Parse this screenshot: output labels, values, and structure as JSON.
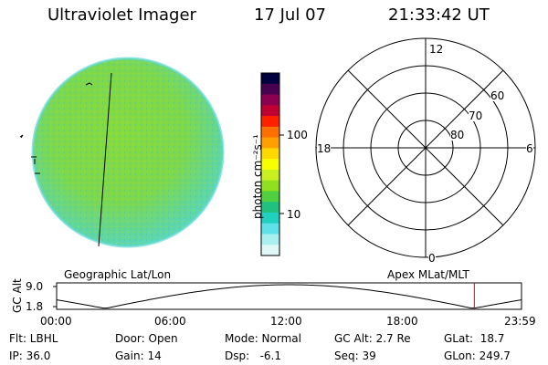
{
  "header": {
    "instrument": "Ultraviolet Imager",
    "date": "17 Jul 07",
    "time": "21:33:42 UT"
  },
  "colorbar": {
    "unit_label": "photon cm⁻²s⁻¹",
    "ticks": [
      "100",
      "10"
    ],
    "colors": [
      "#000040",
      "#4a0050",
      "#8b0050",
      "#c00030",
      "#ff2000",
      "#ff7000",
      "#ffa000",
      "#ffd800",
      "#f8ff00",
      "#c8f020",
      "#90e020",
      "#50d040",
      "#20c080",
      "#20d0c0",
      "#60e0e8",
      "#a8f0f0",
      "#e0f8f8"
    ]
  },
  "image_panel": {
    "fill_color": "#7fd84a",
    "edge_color": "#5ad8c8"
  },
  "polar_plot": {
    "mlt_labels": {
      "top": "12",
      "left": "18",
      "right": "6",
      "bottom": "0"
    },
    "lat_labels": [
      "60",
      "70",
      "80"
    ]
  },
  "orbit_plot": {
    "geo_label": "Geographic Lat/Lon",
    "apex_label": "Apex MLat/MLT",
    "y_axis_label": "GC Alt",
    "y_ticks": [
      "9.0",
      "1.8"
    ],
    "x_ticks": [
      "00:00",
      "06:00",
      "12:00",
      "18:00",
      "23:59"
    ],
    "current_time_hours": 21.56,
    "marker_color": "#d00000"
  },
  "info": {
    "filter": "Flt: LBHL",
    "ip": "IP: 36.0",
    "door": "Door: Open",
    "gain": "Gain: 14",
    "mode": "Mode: Normal",
    "dsp": "Dsp:   -6.1",
    "gc_alt": "GC Alt: 2.7 Re",
    "seq": "Seq: 39",
    "glat": "GLat:  18.7",
    "glon": "GLon: 249.7"
  }
}
